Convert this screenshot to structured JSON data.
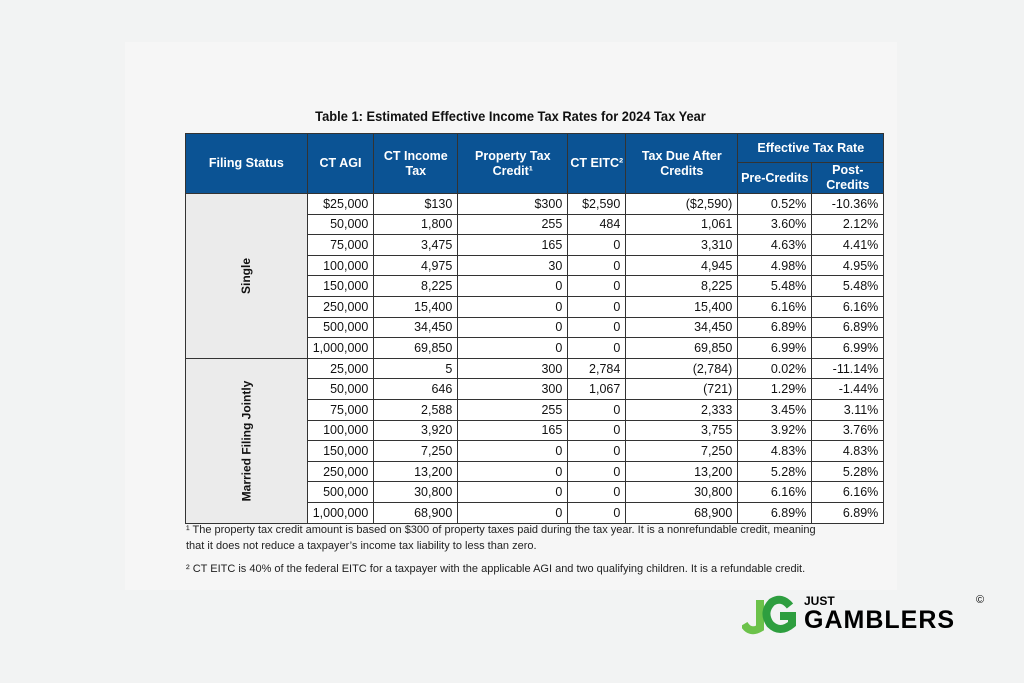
{
  "title": "Table 1: Estimated Effective Income Tax Rates for 2024 Tax Year",
  "headers": {
    "filing_status": "Filing Status",
    "agi": "CT AGI",
    "income_tax": "CT Income Tax",
    "prop_credit": "Property Tax Credit¹",
    "eitc": "CT EITC²",
    "tax_due": "Tax Due After Credits",
    "eff_rate": "Effective Tax Rate",
    "pre": "Pre-Credits",
    "post": "Post-Credits"
  },
  "groups": [
    {
      "status": "Single",
      "rows": [
        [
          "$25,000",
          "$130",
          "$300",
          "$2,590",
          "($2,590)",
          "0.52%",
          "-10.36%"
        ],
        [
          "50,000",
          "1,800",
          "255",
          "484",
          "1,061",
          "3.60%",
          "2.12%"
        ],
        [
          "75,000",
          "3,475",
          "165",
          "0",
          "3,310",
          "4.63%",
          "4.41%"
        ],
        [
          "100,000",
          "4,975",
          "30",
          "0",
          "4,945",
          "4.98%",
          "4.95%"
        ],
        [
          "150,000",
          "8,225",
          "0",
          "0",
          "8,225",
          "5.48%",
          "5.48%"
        ],
        [
          "250,000",
          "15,400",
          "0",
          "0",
          "15,400",
          "6.16%",
          "6.16%"
        ],
        [
          "500,000",
          "34,450",
          "0",
          "0",
          "34,450",
          "6.89%",
          "6.89%"
        ],
        [
          "1,000,000",
          "69,850",
          "0",
          "0",
          "69,850",
          "6.99%",
          "6.99%"
        ]
      ]
    },
    {
      "status": "Married Filing Jointly",
      "rows": [
        [
          "25,000",
          "5",
          "300",
          "2,784",
          "(2,784)",
          "0.02%",
          "-11.14%"
        ],
        [
          "50,000",
          "646",
          "300",
          "1,067",
          "(721)",
          "1.29%",
          "-1.44%"
        ],
        [
          "75,000",
          "2,588",
          "255",
          "0",
          "2,333",
          "3.45%",
          "3.11%"
        ],
        [
          "100,000",
          "3,920",
          "165",
          "0",
          "3,755",
          "3.92%",
          "3.76%"
        ],
        [
          "150,000",
          "7,250",
          "0",
          "0",
          "7,250",
          "4.83%",
          "4.83%"
        ],
        [
          "250,000",
          "13,200",
          "0",
          "0",
          "13,200",
          "5.28%",
          "5.28%"
        ],
        [
          "500,000",
          "30,800",
          "0",
          "0",
          "30,800",
          "6.16%",
          "6.16%"
        ],
        [
          "1,000,000",
          "68,900",
          "0",
          "0",
          "68,900",
          "6.89%",
          "6.89%"
        ]
      ]
    }
  ],
  "footnotes": [
    "¹ The property tax credit amount is based on $300 of property taxes paid during the tax year. It is a nonrefundable credit, meaning that it does not reduce a taxpayer’s income tax liability to less than zero.",
    "² CT EITC is 40% of the federal EITC for a taxpayer with the applicable AGI and two qualifying children. It is a refundable credit."
  ],
  "logo": {
    "mark": "JG",
    "line1": "JUST",
    "line2": "GAMBLERS",
    "copyright": "©"
  },
  "colors": {
    "header": "#0b5394",
    "group_bg": "#ebebeb",
    "logo_green": "#3cae3f"
  }
}
